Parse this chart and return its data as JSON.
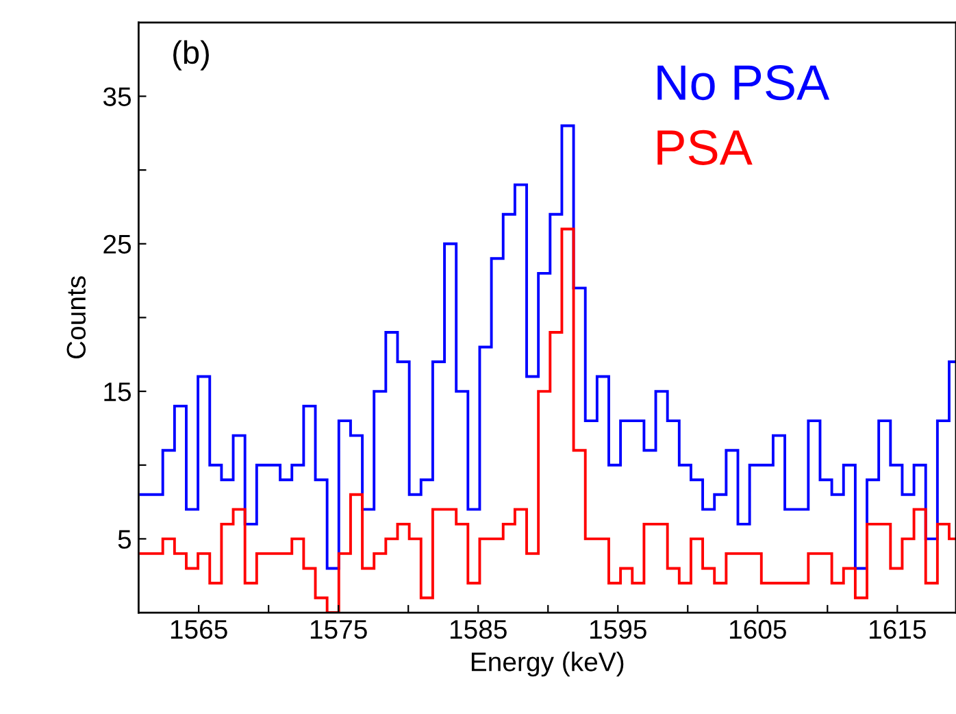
{
  "chart_data": {
    "type": "histogram",
    "xlabel": "Energy (keV)",
    "ylabel": "Counts",
    "annotations": [
      "(b)"
    ],
    "bins": [
      1560.75,
      1561.59,
      1562.43,
      1563.27,
      1564.11,
      1564.95,
      1565.79,
      1566.63,
      1567.47,
      1568.31,
      1569.15,
      1569.99,
      1570.83,
      1571.67,
      1572.51,
      1573.35,
      1574.19,
      1575.03,
      1575.87,
      1576.71,
      1577.55,
      1578.39,
      1579.23,
      1580.07,
      1580.91,
      1581.75,
      1582.59,
      1583.43,
      1584.27,
      1585.11,
      1585.95,
      1586.79,
      1587.63,
      1588.47,
      1589.31,
      1590.15,
      1590.99,
      1591.83,
      1592.67,
      1593.51,
      1594.35,
      1595.19,
      1596.03,
      1596.87,
      1597.71,
      1598.55,
      1599.39,
      1600.23,
      1601.07,
      1601.91,
      1602.75,
      1603.59,
      1604.43,
      1605.27,
      1606.11,
      1606.95,
      1607.79,
      1608.63,
      1609.47,
      1610.31,
      1611.15,
      1611.99,
      1612.83,
      1613.67,
      1614.51,
      1615.35,
      1616.19,
      1617.03,
      1617.87,
      1618.71,
      1619.2
    ],
    "series": [
      {
        "name": "No PSA",
        "color": "#0000ff",
        "values": [
          8,
          8,
          11,
          14,
          7,
          16,
          10,
          9,
          12,
          6,
          10,
          10,
          9,
          10,
          14,
          9,
          3,
          13,
          12,
          7,
          15,
          19,
          17,
          8,
          9,
          17,
          25,
          15,
          7,
          18,
          24,
          27,
          29,
          16,
          23,
          27,
          33,
          22,
          13,
          16,
          10,
          13,
          13,
          11,
          15,
          13,
          10,
          9,
          7,
          8,
          11,
          6,
          10,
          10,
          12,
          7,
          7,
          13,
          9,
          8,
          10,
          3,
          9,
          13,
          10,
          8,
          10,
          5,
          13,
          17
        ]
      },
      {
        "name": "PSA",
        "color": "#ff0000",
        "values": [
          4,
          4,
          5,
          4,
          3,
          4,
          2,
          6,
          7,
          2,
          4,
          4,
          4,
          5,
          3,
          1,
          0,
          4,
          8,
          3,
          4,
          5,
          6,
          5,
          1,
          7,
          7,
          6,
          2,
          5,
          5,
          6,
          7,
          4,
          15,
          19,
          26,
          11,
          5,
          5,
          2,
          3,
          2,
          6,
          6,
          3,
          2,
          5,
          3,
          2,
          4,
          4,
          4,
          2,
          2,
          2,
          2,
          4,
          4,
          2,
          3,
          1,
          6,
          6,
          3,
          5,
          7,
          2,
          6,
          5
        ]
      }
    ],
    "xlim": [
      1560.7,
      1619.2
    ],
    "ylim": [
      0,
      40
    ],
    "xticks": [
      1565,
      {
        "value": 1570,
        "label": null
      },
      1575,
      {
        "value": 1580,
        "label": null
      },
      1585,
      {
        "value": 1590,
        "label": null
      },
      1595,
      {
        "value": 1600,
        "label": null
      },
      1605,
      {
        "value": 1610,
        "label": null
      },
      1615
    ],
    "yticks": [
      5,
      {
        "value": 10,
        "label": null
      },
      15,
      {
        "value": 20,
        "label": null
      },
      25,
      {
        "value": 30,
        "label": null
      },
      35
    ],
    "grid": false,
    "legend": "top right"
  }
}
